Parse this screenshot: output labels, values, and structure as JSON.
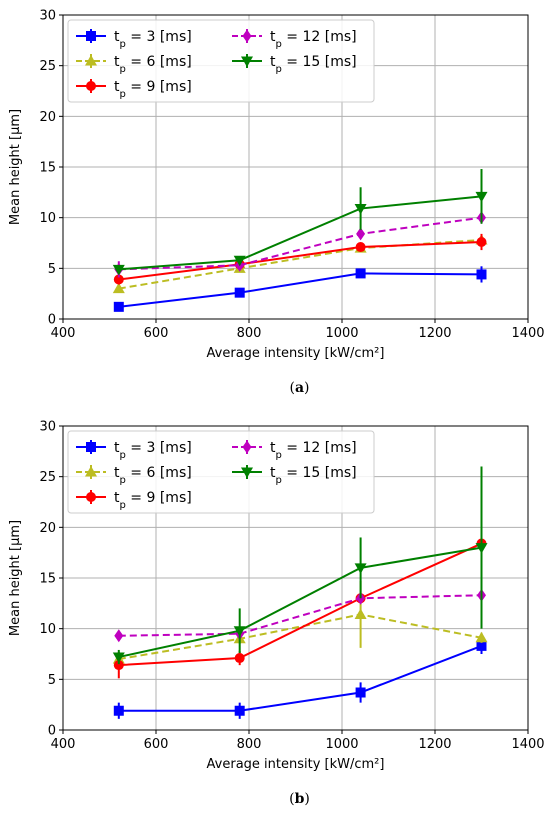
{
  "chart_data": [
    {
      "type": "line",
      "panel_label": "(a)",
      "xlabel": "Average intensity [kW/cm²]",
      "ylabel": "Mean height [μm]",
      "xlim": [
        400,
        1400
      ],
      "ylim": [
        0,
        30
      ],
      "xticks": [
        400,
        600,
        800,
        1000,
        1200,
        1400
      ],
      "yticks": [
        0,
        5,
        10,
        15,
        20,
        25,
        30
      ],
      "grid": true,
      "legend_placement": "top-left",
      "series": [
        {
          "name": "t_p = 3 [ms]",
          "color": "#0000ff",
          "dash": "solid",
          "marker": "square",
          "points": [
            {
              "x": 520,
              "y": 1.2,
              "err": 0.2
            },
            {
              "x": 780,
              "y": 2.6,
              "err": 0.2
            },
            {
              "x": 1040,
              "y": 4.5,
              "err": 0.3
            },
            {
              "x": 1300,
              "y": 4.4,
              "err": 0.8
            }
          ]
        },
        {
          "name": "t_p = 6 [ms]",
          "color": "#bcbd22",
          "dash": "dashed",
          "marker": "triangle-up",
          "points": [
            {
              "x": 520,
              "y": 3.0,
              "err": 0.3
            },
            {
              "x": 780,
              "y": 5.0,
              "err": 0.3
            },
            {
              "x": 1040,
              "y": 7.0,
              "err": 0.4
            },
            {
              "x": 1300,
              "y": 7.8,
              "err": 0.5
            }
          ]
        },
        {
          "name": "t_p = 9 [ms]",
          "color": "#ff0000",
          "dash": "solid",
          "marker": "circle",
          "points": [
            {
              "x": 520,
              "y": 3.9,
              "err": 0.5
            },
            {
              "x": 780,
              "y": 5.4,
              "err": 0.3
            },
            {
              "x": 1040,
              "y": 7.1,
              "err": 0.3
            },
            {
              "x": 1300,
              "y": 7.6,
              "err": 0.8
            }
          ]
        },
        {
          "name": "t_p = 12 [ms]",
          "color": "#bf00bf",
          "dash": "dashed",
          "marker": "diamond",
          "points": [
            {
              "x": 520,
              "y": 4.9,
              "err": 0.8
            },
            {
              "x": 780,
              "y": 5.3,
              "err": 0.3
            },
            {
              "x": 1040,
              "y": 8.4,
              "err": 0.4
            },
            {
              "x": 1300,
              "y": 10.0,
              "err": 0.5
            }
          ]
        },
        {
          "name": "t_p = 15 [ms]",
          "color": "#008000",
          "dash": "solid",
          "marker": "triangle-down",
          "points": [
            {
              "x": 520,
              "y": 4.9,
              "err": 0.3
            },
            {
              "x": 780,
              "y": 5.8,
              "err": 0.3
            },
            {
              "x": 1040,
              "y": 10.9,
              "err": 2.1
            },
            {
              "x": 1300,
              "y": 12.1,
              "err": 2.7
            }
          ]
        }
      ]
    },
    {
      "type": "line",
      "panel_label": "(b)",
      "xlabel": "Average intensity [kW/cm²]",
      "ylabel": "Mean height [μm]",
      "xlim": [
        400,
        1400
      ],
      "ylim": [
        0,
        30
      ],
      "xticks": [
        400,
        600,
        800,
        1000,
        1200,
        1400
      ],
      "yticks": [
        0,
        5,
        10,
        15,
        20,
        25,
        30
      ],
      "grid": true,
      "legend_placement": "top-left",
      "series": [
        {
          "name": "t_p = 3 [ms]",
          "color": "#0000ff",
          "dash": "solid",
          "marker": "square",
          "points": [
            {
              "x": 520,
              "y": 1.9,
              "err": 0.8
            },
            {
              "x": 780,
              "y": 1.9,
              "err": 0.8
            },
            {
              "x": 1040,
              "y": 3.7,
              "err": 1.0
            },
            {
              "x": 1300,
              "y": 8.3,
              "err": 0.8
            }
          ]
        },
        {
          "name": "t_p = 6 [ms]",
          "color": "#bcbd22",
          "dash": "dashed",
          "marker": "triangle-up",
          "points": [
            {
              "x": 520,
              "y": 7.0,
              "err": 0.5
            },
            {
              "x": 780,
              "y": 9.0,
              "err": 0.5
            },
            {
              "x": 1040,
              "y": 11.4,
              "err": 3.3
            },
            {
              "x": 1300,
              "y": 9.1,
              "err": 0.5
            }
          ]
        },
        {
          "name": "t_p = 9 [ms]",
          "color": "#ff0000",
          "dash": "solid",
          "marker": "circle",
          "points": [
            {
              "x": 520,
              "y": 6.4,
              "err": 1.3
            },
            {
              "x": 780,
              "y": 7.1,
              "err": 0.7
            },
            {
              "x": 1040,
              "y": 13.0,
              "err": 0.5
            },
            {
              "x": 1300,
              "y": 18.4,
              "err": 0.5
            }
          ]
        },
        {
          "name": "t_p = 12 [ms]",
          "color": "#bf00bf",
          "dash": "dashed",
          "marker": "diamond",
          "points": [
            {
              "x": 520,
              "y": 9.3,
              "err": 0.5
            },
            {
              "x": 780,
              "y": 9.5,
              "err": 0.5
            },
            {
              "x": 1040,
              "y": 13.0,
              "err": 0.5
            },
            {
              "x": 1300,
              "y": 13.3,
              "err": 0.5
            }
          ]
        },
        {
          "name": "t_p = 15 [ms]",
          "color": "#008000",
          "dash": "solid",
          "marker": "triangle-down",
          "points": [
            {
              "x": 520,
              "y": 7.2,
              "err": 0.7
            },
            {
              "x": 780,
              "y": 9.8,
              "err": 2.2
            },
            {
              "x": 1040,
              "y": 16.0,
              "err": 3.0
            },
            {
              "x": 1300,
              "y": 18.0,
              "err": 8.0
            }
          ]
        }
      ]
    }
  ]
}
